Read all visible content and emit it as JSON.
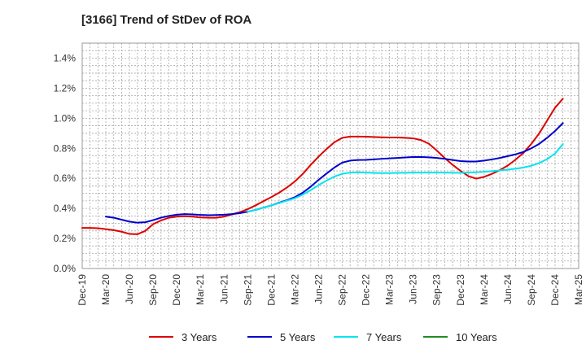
{
  "chart_data": {
    "type": "line",
    "title": "[3166]  Trend of StDev of ROA",
    "xlabel": "",
    "ylabel": "",
    "x_ticks": [
      "Dec-19",
      "Mar-20",
      "Jun-20",
      "Sep-20",
      "Dec-20",
      "Mar-21",
      "Jun-21",
      "Sep-21",
      "Dec-21",
      "Mar-22",
      "Jun-22",
      "Sep-22",
      "Dec-22",
      "Mar-23",
      "Jun-23",
      "Sep-23",
      "Dec-23",
      "Mar-24",
      "Jun-24",
      "Sep-24",
      "Dec-24",
      "Mar-25"
    ],
    "y_ticks": [
      "0.0%",
      "0.2%",
      "0.4%",
      "0.6%",
      "0.8%",
      "1.0%",
      "1.2%",
      "1.4%"
    ],
    "ylim": [
      0,
      1.5
    ],
    "grid": true,
    "legend_position": "bottom",
    "series": [
      {
        "name": "3 Years",
        "color": "#dd0000",
        "points": [
          [
            "Dec-19",
            0.27
          ],
          [
            "Jan-20",
            0.27
          ],
          [
            "Feb-20",
            0.268
          ],
          [
            "Mar-20",
            0.262
          ],
          [
            "Apr-20",
            0.255
          ],
          [
            "May-20",
            0.245
          ],
          [
            "Jun-20",
            0.23
          ],
          [
            "Jul-20",
            0.228
          ],
          [
            "Aug-20",
            0.25
          ],
          [
            "Sep-20",
            0.295
          ],
          [
            "Oct-20",
            0.32
          ],
          [
            "Nov-20",
            0.338
          ],
          [
            "Dec-20",
            0.345
          ],
          [
            "Jan-21",
            0.348
          ],
          [
            "Feb-21",
            0.345
          ],
          [
            "Mar-21",
            0.34
          ],
          [
            "Apr-21",
            0.338
          ],
          [
            "May-21",
            0.338
          ],
          [
            "Jun-21",
            0.345
          ],
          [
            "Jul-21",
            0.36
          ],
          [
            "Aug-21",
            0.375
          ],
          [
            "Sep-21",
            0.395
          ],
          [
            "Oct-21",
            0.42
          ],
          [
            "Nov-21",
            0.448
          ],
          [
            "Dec-21",
            0.475
          ],
          [
            "Jan-22",
            0.505
          ],
          [
            "Feb-22",
            0.54
          ],
          [
            "Mar-22",
            0.58
          ],
          [
            "Apr-22",
            0.63
          ],
          [
            "May-22",
            0.69
          ],
          [
            "Jun-22",
            0.745
          ],
          [
            "Jul-22",
            0.795
          ],
          [
            "Aug-22",
            0.84
          ],
          [
            "Sep-22",
            0.87
          ],
          [
            "Oct-22",
            0.878
          ],
          [
            "Nov-22",
            0.878
          ],
          [
            "Dec-22",
            0.877
          ],
          [
            "Jan-23",
            0.875
          ],
          [
            "Feb-23",
            0.873
          ],
          [
            "Mar-23",
            0.872
          ],
          [
            "Apr-23",
            0.872
          ],
          [
            "May-23",
            0.87
          ],
          [
            "Jun-23",
            0.866
          ],
          [
            "Jul-23",
            0.855
          ],
          [
            "Aug-23",
            0.83
          ],
          [
            "Sep-23",
            0.785
          ],
          [
            "Oct-23",
            0.735
          ],
          [
            "Nov-23",
            0.69
          ],
          [
            "Dec-23",
            0.65
          ],
          [
            "Jan-24",
            0.615
          ],
          [
            "Feb-24",
            0.598
          ],
          [
            "Mar-24",
            0.61
          ],
          [
            "Apr-24",
            0.63
          ],
          [
            "May-24",
            0.655
          ],
          [
            "Jun-24",
            0.685
          ],
          [
            "Jul-24",
            0.725
          ],
          [
            "Aug-24",
            0.77
          ],
          [
            "Sep-24",
            0.83
          ],
          [
            "Oct-24",
            0.9
          ],
          [
            "Nov-24",
            0.985
          ],
          [
            "Dec-24",
            1.07
          ],
          [
            "Jan-25",
            1.13
          ]
        ]
      },
      {
        "name": "5 Years",
        "color": "#0000cc",
        "points": [
          [
            "Mar-20",
            0.345
          ],
          [
            "Apr-20",
            0.338
          ],
          [
            "May-20",
            0.325
          ],
          [
            "Jun-20",
            0.312
          ],
          [
            "Jul-20",
            0.305
          ],
          [
            "Aug-20",
            0.308
          ],
          [
            "Sep-20",
            0.322
          ],
          [
            "Oct-20",
            0.338
          ],
          [
            "Nov-20",
            0.35
          ],
          [
            "Dec-20",
            0.358
          ],
          [
            "Jan-21",
            0.362
          ],
          [
            "Feb-21",
            0.36
          ],
          [
            "Mar-21",
            0.357
          ],
          [
            "Apr-21",
            0.355
          ],
          [
            "May-21",
            0.356
          ],
          [
            "Jun-21",
            0.358
          ],
          [
            "Jul-21",
            0.362
          ],
          [
            "Aug-21",
            0.368
          ],
          [
            "Sep-21",
            0.378
          ],
          [
            "Oct-21",
            0.39
          ],
          [
            "Nov-21",
            0.405
          ],
          [
            "Dec-21",
            0.42
          ],
          [
            "Jan-22",
            0.438
          ],
          [
            "Feb-22",
            0.455
          ],
          [
            "Mar-22",
            0.475
          ],
          [
            "Apr-22",
            0.505
          ],
          [
            "May-22",
            0.545
          ],
          [
            "Jun-22",
            0.59
          ],
          [
            "Jul-22",
            0.632
          ],
          [
            "Aug-22",
            0.672
          ],
          [
            "Sep-22",
            0.705
          ],
          [
            "Oct-22",
            0.718
          ],
          [
            "Nov-22",
            0.722
          ],
          [
            "Dec-22",
            0.723
          ],
          [
            "Jan-23",
            0.726
          ],
          [
            "Feb-23",
            0.73
          ],
          [
            "Mar-23",
            0.733
          ],
          [
            "Apr-23",
            0.736
          ],
          [
            "May-23",
            0.739
          ],
          [
            "Jun-23",
            0.742
          ],
          [
            "Jul-23",
            0.742
          ],
          [
            "Aug-23",
            0.74
          ],
          [
            "Sep-23",
            0.736
          ],
          [
            "Oct-23",
            0.73
          ],
          [
            "Nov-23",
            0.722
          ],
          [
            "Dec-23",
            0.715
          ],
          [
            "Jan-24",
            0.712
          ],
          [
            "Feb-24",
            0.712
          ],
          [
            "Mar-24",
            0.718
          ],
          [
            "Apr-24",
            0.726
          ],
          [
            "May-24",
            0.736
          ],
          [
            "Jun-24",
            0.748
          ],
          [
            "Jul-24",
            0.76
          ],
          [
            "Aug-24",
            0.776
          ],
          [
            "Sep-24",
            0.8
          ],
          [
            "Oct-24",
            0.83
          ],
          [
            "Nov-24",
            0.87
          ],
          [
            "Dec-24",
            0.915
          ],
          [
            "Jan-25",
            0.968
          ]
        ]
      },
      {
        "name": "7 Years",
        "color": "#00e5ee",
        "points": [
          [
            "Sep-21",
            0.378
          ],
          [
            "Oct-21",
            0.39
          ],
          [
            "Nov-21",
            0.405
          ],
          [
            "Dec-21",
            0.42
          ],
          [
            "Jan-22",
            0.436
          ],
          [
            "Feb-22",
            0.452
          ],
          [
            "Mar-22",
            0.468
          ],
          [
            "Apr-22",
            0.492
          ],
          [
            "May-22",
            0.522
          ],
          [
            "Jun-22",
            0.555
          ],
          [
            "Jul-22",
            0.585
          ],
          [
            "Aug-22",
            0.612
          ],
          [
            "Sep-22",
            0.63
          ],
          [
            "Oct-22",
            0.638
          ],
          [
            "Nov-22",
            0.64
          ],
          [
            "Dec-22",
            0.638
          ],
          [
            "Jan-23",
            0.636
          ],
          [
            "Feb-23",
            0.635
          ],
          [
            "Mar-23",
            0.635
          ],
          [
            "Apr-23",
            0.636
          ],
          [
            "May-23",
            0.637
          ],
          [
            "Jun-23",
            0.638
          ],
          [
            "Jul-23",
            0.638
          ],
          [
            "Aug-23",
            0.638
          ],
          [
            "Sep-23",
            0.638
          ],
          [
            "Oct-23",
            0.638
          ],
          [
            "Nov-23",
            0.637
          ],
          [
            "Dec-23",
            0.637
          ],
          [
            "Jan-24",
            0.638
          ],
          [
            "Feb-24",
            0.64
          ],
          [
            "Mar-24",
            0.644
          ],
          [
            "Apr-24",
            0.648
          ],
          [
            "May-24",
            0.653
          ],
          [
            "Jun-24",
            0.658
          ],
          [
            "Jul-24",
            0.664
          ],
          [
            "Aug-24",
            0.672
          ],
          [
            "Sep-24",
            0.684
          ],
          [
            "Oct-24",
            0.702
          ],
          [
            "Nov-24",
            0.728
          ],
          [
            "Dec-24",
            0.765
          ],
          [
            "Jan-25",
            0.828
          ]
        ]
      },
      {
        "name": "10 Years",
        "color": "#228b22",
        "points": []
      }
    ]
  }
}
